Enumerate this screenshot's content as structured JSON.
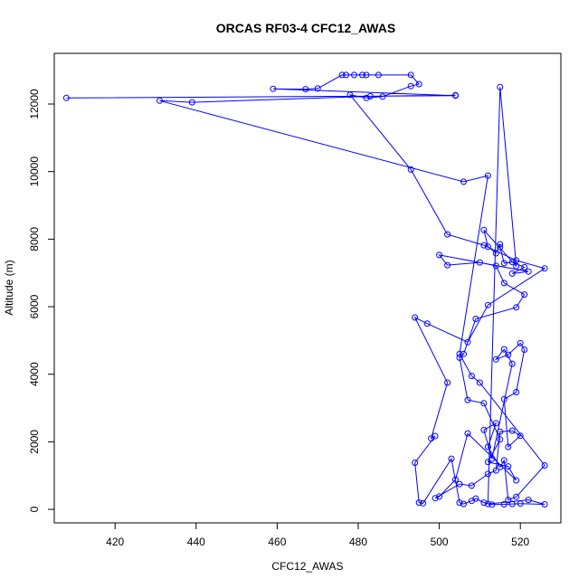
{
  "chart_data": {
    "type": "line",
    "title": "ORCAS RF03-4 CFC12_AWAS",
    "xlabel": "CFC12_AWAS",
    "ylabel": "Altitude (m)",
    "xlim": [
      405,
      530
    ],
    "ylim": [
      -400,
      13500
    ],
    "xticks": [
      420,
      440,
      460,
      480,
      500,
      520
    ],
    "yticks": [
      0,
      2000,
      4000,
      6000,
      8000,
      10000,
      12000
    ],
    "grid": false,
    "colors": {
      "series": "#0000ff"
    },
    "series": [
      {
        "points": [
          [
            408,
            12180
          ],
          [
            504,
            12250
          ],
          [
            459,
            12450
          ],
          [
            467,
            12440
          ],
          [
            470,
            12460
          ],
          [
            476,
            12860
          ],
          [
            477,
            12860
          ],
          [
            479,
            12860
          ],
          [
            481,
            12860
          ],
          [
            482,
            12860
          ],
          [
            485,
            12860
          ],
          [
            493,
            12860
          ],
          [
            495,
            12590
          ],
          [
            493,
            12530
          ],
          [
            486,
            12220
          ],
          [
            482,
            12180
          ],
          [
            478,
            12270
          ],
          [
            493,
            10060
          ],
          [
            502,
            8140
          ],
          [
            511,
            7820
          ],
          [
            519,
            7370
          ],
          [
            526,
            7130
          ],
          [
            512,
            6050
          ],
          [
            507,
            4950
          ],
          [
            497,
            5500
          ],
          [
            494,
            5680
          ],
          [
            502,
            3750
          ],
          [
            498,
            2100
          ],
          [
            499,
            2170
          ],
          [
            494,
            1380
          ],
          [
            495,
            200
          ],
          [
            496,
            180
          ],
          [
            503,
            1500
          ],
          [
            505,
            200
          ],
          [
            506,
            160
          ],
          [
            508,
            250
          ],
          [
            509,
            320
          ],
          [
            511,
            200
          ],
          [
            513,
            140
          ],
          [
            516,
            150
          ],
          [
            518,
            160
          ],
          [
            520,
            170
          ],
          [
            526,
            150
          ],
          [
            522,
            280
          ],
          [
            512,
            160
          ],
          [
            515,
            12500
          ],
          [
            519,
            7200
          ],
          [
            511,
            8270
          ],
          [
            512,
            7780
          ],
          [
            514,
            7580
          ],
          [
            515,
            7850
          ],
          [
            515,
            7760
          ],
          [
            516,
            7290
          ],
          [
            518,
            7320
          ],
          [
            521,
            7170
          ],
          [
            518,
            6980
          ],
          [
            522,
            7040
          ],
          [
            500,
            7530
          ],
          [
            502,
            7230
          ],
          [
            510,
            7310
          ],
          [
            514,
            7210
          ],
          [
            516,
            6700
          ],
          [
            521,
            6360
          ],
          [
            519,
            5980
          ],
          [
            509,
            5640
          ],
          [
            506,
            4600
          ],
          [
            505,
            4490
          ],
          [
            507,
            3240
          ],
          [
            511,
            3140
          ],
          [
            515,
            2070
          ],
          [
            512,
            1400
          ],
          [
            517,
            1270
          ],
          [
            519,
            860
          ],
          [
            507,
            2250
          ],
          [
            504,
            880
          ],
          [
            500,
            380
          ],
          [
            499,
            330
          ],
          [
            505,
            750
          ],
          [
            508,
            700
          ],
          [
            512,
            1050
          ],
          [
            514,
            1150
          ],
          [
            515,
            2300
          ],
          [
            518,
            2330
          ],
          [
            520,
            2180
          ],
          [
            517,
            1850
          ],
          [
            516,
            3260
          ],
          [
            519,
            3470
          ],
          [
            521,
            4730
          ],
          [
            520,
            4920
          ],
          [
            517,
            4580
          ],
          [
            514,
            4440
          ],
          [
            516,
            4740
          ],
          [
            518,
            4310
          ],
          [
            513,
            1500
          ],
          [
            511,
            2350
          ],
          [
            514,
            2550
          ],
          [
            512,
            1850
          ],
          [
            515,
            1250
          ],
          [
            516,
            1450
          ],
          [
            517,
            280
          ],
          [
            519,
            370
          ],
          [
            526,
            1300
          ],
          [
            510,
            3750
          ],
          [
            508,
            3950
          ],
          [
            505,
            4600
          ],
          [
            512,
            9880
          ],
          [
            506,
            9700
          ],
          [
            431,
            12100
          ],
          [
            439,
            12050
          ],
          [
            483,
            12230
          ],
          [
            504,
            12260
          ]
        ]
      }
    ]
  }
}
